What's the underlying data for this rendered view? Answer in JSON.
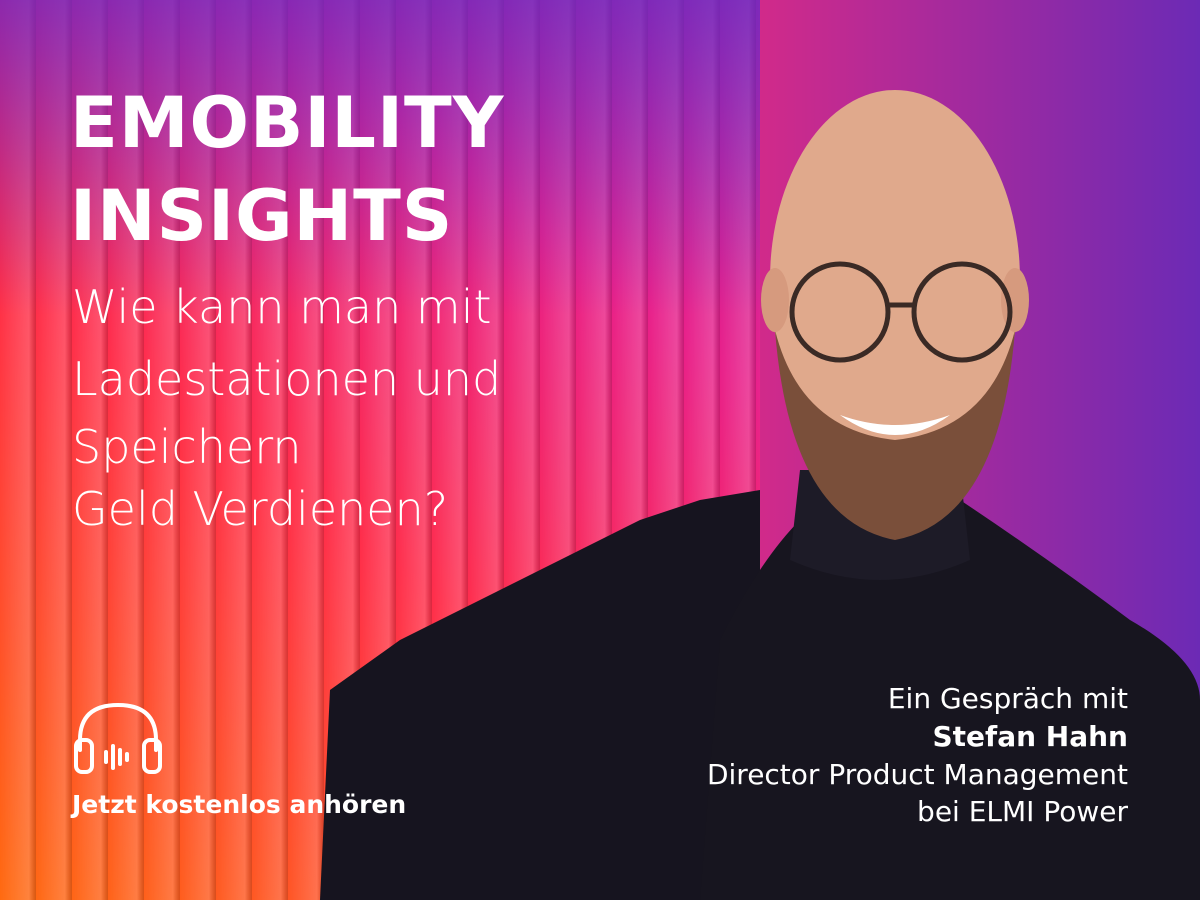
{
  "title": {
    "lines": [
      "EMOBILITY",
      "INSIGHTS"
    ]
  },
  "question": {
    "lines": [
      "Wie kann man mit",
      "Ladestationen und",
      "Speichern",
      "Geld Verdienen?"
    ]
  },
  "cta": {
    "label": "Jetzt kostenlos anhören"
  },
  "speaker": {
    "intro": "Ein Gespräch mit",
    "name": "Stefan Hahn",
    "role": "Director Product Management",
    "company": "bei ELMI Power"
  }
}
